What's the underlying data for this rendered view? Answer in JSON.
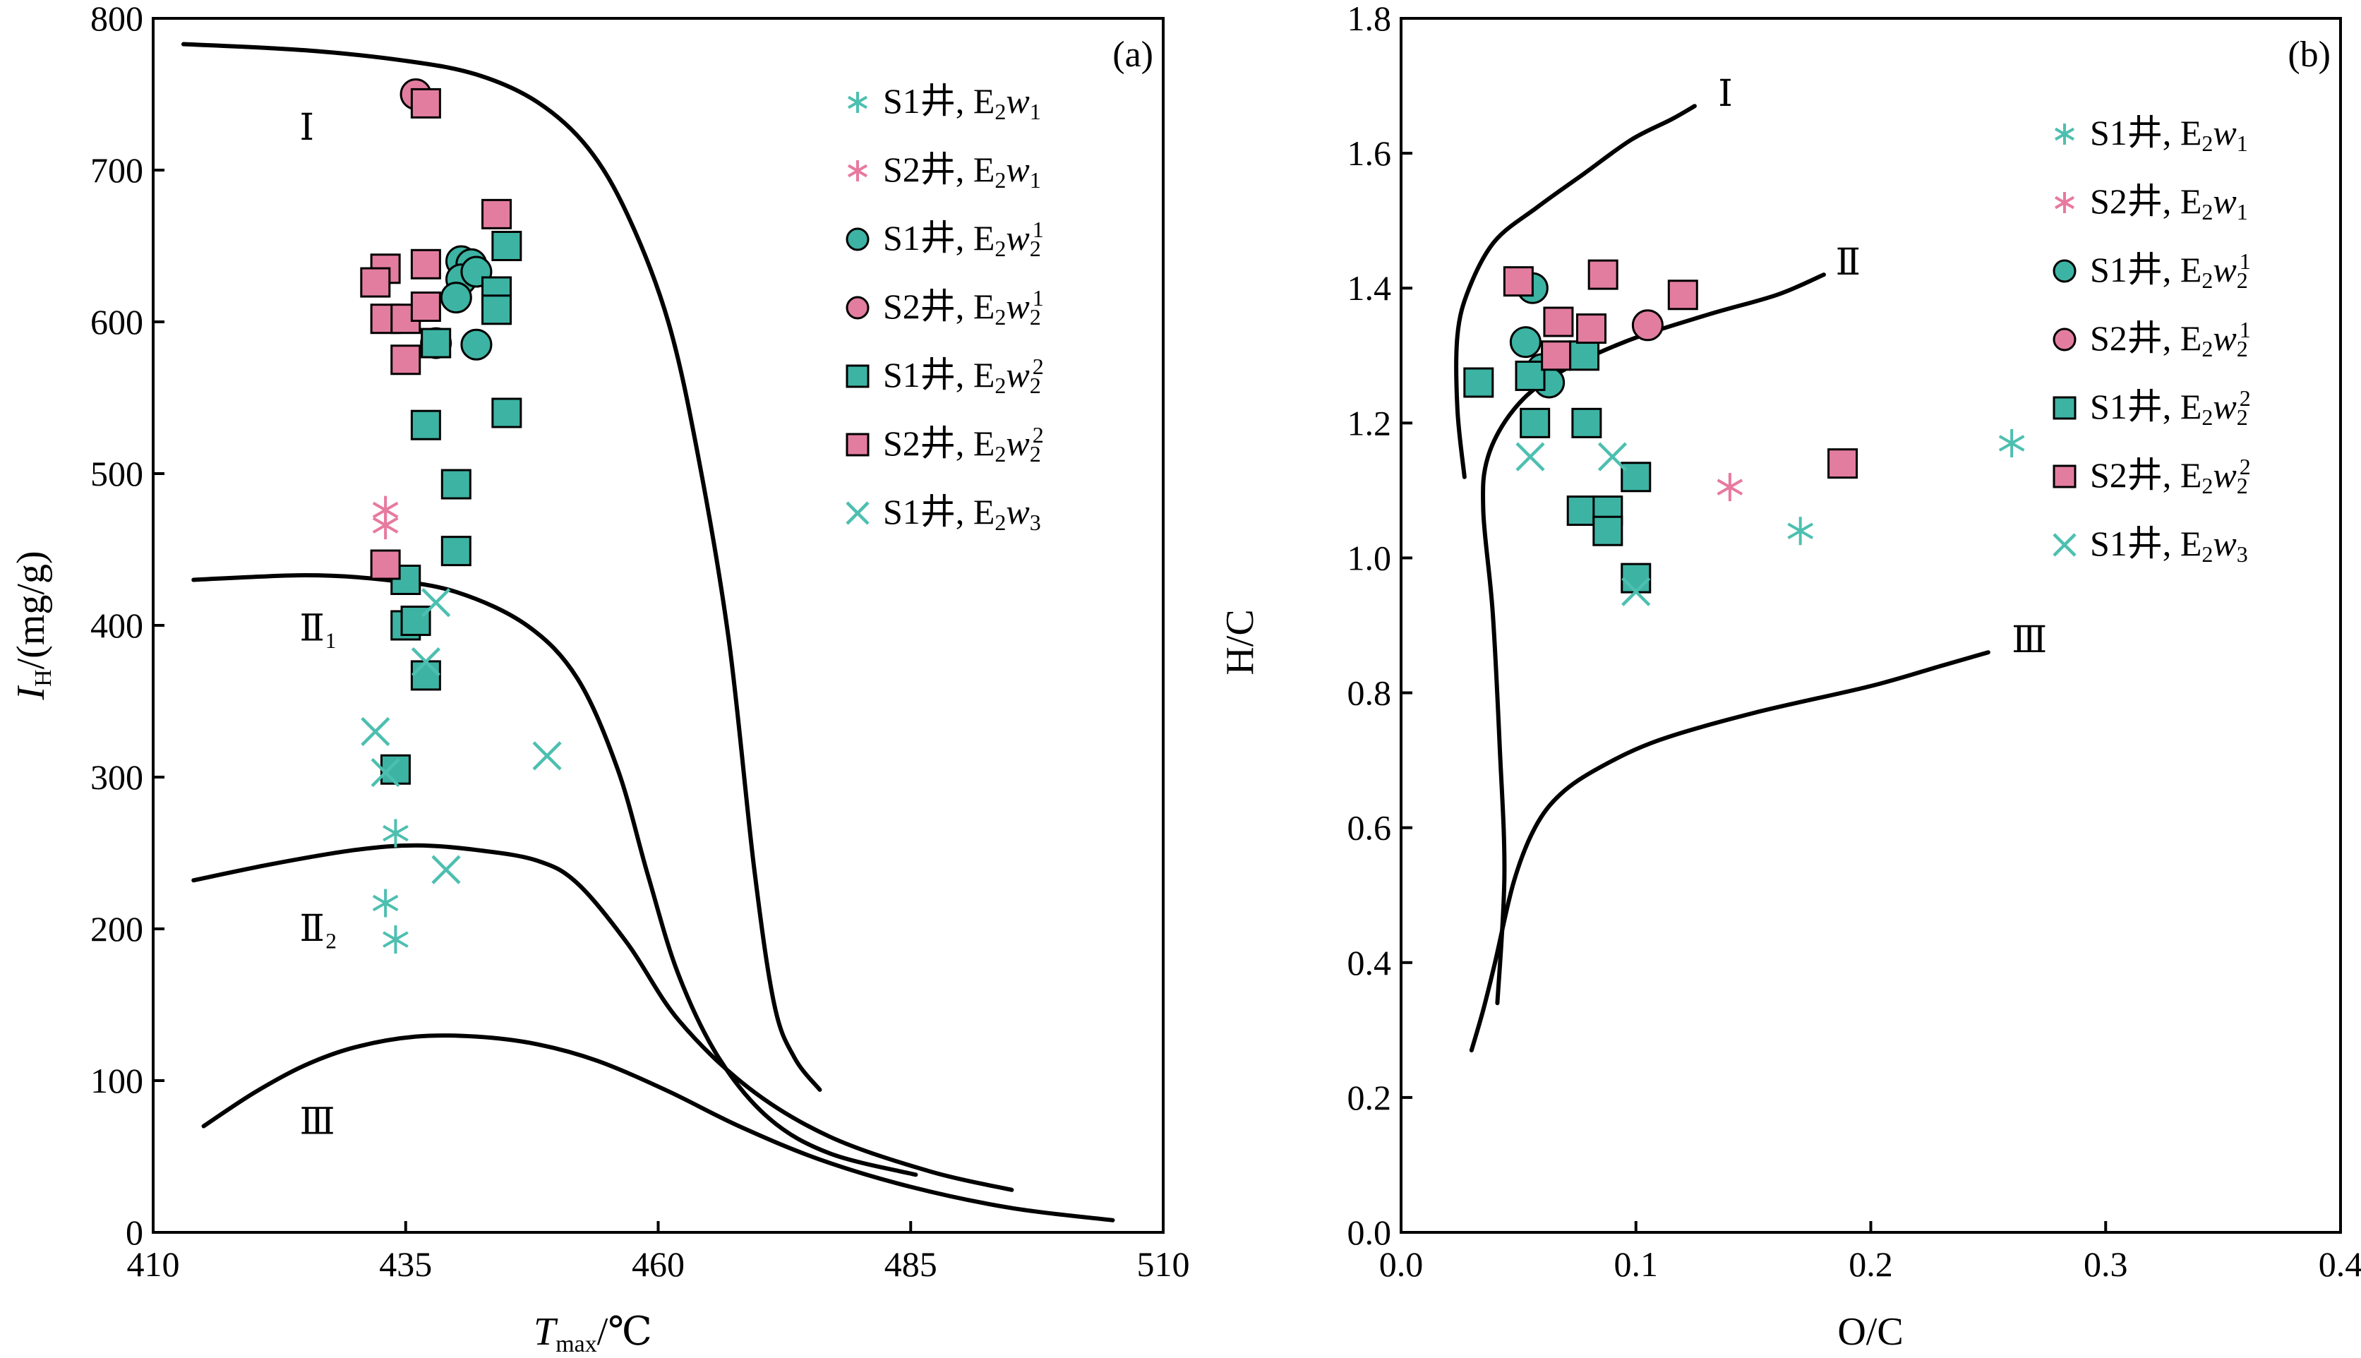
{
  "colors": {
    "teal": "#4dbfb0",
    "teal_fill": "#3db3a3",
    "pink": "#e8799f",
    "pink_fill": "#e37d9f"
  },
  "chart_data": [
    {
      "id": "a",
      "type": "scatter",
      "panel_label": "(a)",
      "xlabel_main": "T",
      "xlabel_sub": "max",
      "xlabel_unit": "/℃",
      "ylabel_main": "I",
      "ylabel_sub": "H",
      "ylabel_unit": "/(mg/g)",
      "xlim": [
        410,
        510
      ],
      "ylim": [
        0,
        800
      ],
      "xticks": [
        410,
        435,
        460,
        485,
        510
      ],
      "yticks": [
        0,
        100,
        200,
        300,
        400,
        500,
        600,
        700,
        800
      ],
      "boundaries": [
        {
          "label": "Ⅰ",
          "label_pos": [
            424.5,
            720
          ],
          "points": [
            [
              413,
              783
            ],
            [
              425,
              779
            ],
            [
              435,
              772
            ],
            [
              442,
              763
            ],
            [
              448,
              745
            ],
            [
              453,
              715
            ],
            [
              457,
              670
            ],
            [
              461,
              600
            ],
            [
              464,
              510
            ],
            [
              467,
              390
            ],
            [
              469.5,
              240
            ],
            [
              471.5,
              150
            ],
            [
              473.5,
              115
            ],
            [
              476,
              94
            ]
          ]
        },
        {
          "label": "Ⅱ₁",
          "label_pos": [
            424.5,
            390
          ],
          "points": [
            [
              414,
              430
            ],
            [
              425,
              433
            ],
            [
              433,
              430
            ],
            [
              440,
              422
            ],
            [
              447,
              400
            ],
            [
              452,
              365
            ],
            [
              456,
              305
            ],
            [
              459,
              235
            ],
            [
              462,
              170
            ],
            [
              466,
              115
            ],
            [
              471,
              75
            ],
            [
              477,
              52
            ],
            [
              485.5,
              38
            ]
          ]
        },
        {
          "label": "Ⅱ₂",
          "label_pos": [
            424.5,
            192
          ],
          "points": [
            [
              414,
              232
            ],
            [
              422,
              243
            ],
            [
              430,
              252
            ],
            [
              436,
              255
            ],
            [
              442,
              252
            ],
            [
              448,
              245
            ],
            [
              452,
              230
            ],
            [
              457,
              190
            ],
            [
              462,
              140
            ],
            [
              469,
              95
            ],
            [
              477,
              63
            ],
            [
              487,
              40
            ],
            [
              495,
              28
            ]
          ]
        },
        {
          "label": "Ⅲ",
          "label_pos": [
            424.5,
            65
          ],
          "points": [
            [
              415,
              70
            ],
            [
              420,
              92
            ],
            [
              425,
              110
            ],
            [
              430,
              122
            ],
            [
              436,
              129
            ],
            [
              442,
              129
            ],
            [
              448,
              124
            ],
            [
              454,
              113
            ],
            [
              461,
              93
            ],
            [
              468,
              70
            ],
            [
              476,
              48
            ],
            [
              485,
              30
            ],
            [
              495,
              16
            ],
            [
              505,
              8
            ]
          ]
        }
      ],
      "series": [
        {
          "name": "S1井, E₂w₁",
          "marker": "asterisk",
          "color": "teal",
          "points": [
            [
              433,
              217
            ],
            [
              434,
              263
            ],
            [
              434,
              193
            ]
          ]
        },
        {
          "name": "S2井, E₂w₁",
          "marker": "asterisk",
          "color": "pink",
          "points": [
            [
              433,
              476
            ],
            [
              433,
              466
            ]
          ]
        },
        {
          "name": "S1井, E₂w₂¹",
          "marker": "circle",
          "color": "teal",
          "points": [
            [
              440.5,
              640
            ],
            [
              441.5,
              638
            ],
            [
              440.5,
              628
            ],
            [
              440,
              616
            ],
            [
              438,
              586
            ],
            [
              442,
              585
            ],
            [
              442,
              633
            ]
          ]
        },
        {
          "name": "S2井, E₂w₂¹",
          "marker": "circle",
          "color": "pink",
          "points": [
            [
              436,
              750
            ]
          ]
        },
        {
          "name": "S1井, E₂w₂²",
          "marker": "square",
          "color": "teal",
          "points": [
            [
              445,
              650
            ],
            [
              444,
              620
            ],
            [
              444,
              608
            ],
            [
              445,
              540
            ],
            [
              438,
              586
            ],
            [
              437,
              532
            ],
            [
              440,
              493
            ],
            [
              440,
              449
            ],
            [
              435,
              430
            ],
            [
              435,
              400
            ],
            [
              436,
              403
            ],
            [
              437,
              367
            ],
            [
              434,
              305
            ]
          ]
        },
        {
          "name": "S2井, E₂w₂²",
          "marker": "square",
          "color": "pink",
          "points": [
            [
              437,
              744
            ],
            [
              444,
              671
            ],
            [
              433,
              635
            ],
            [
              432,
              626
            ],
            [
              433,
              602
            ],
            [
              435,
              602
            ],
            [
              437,
              638
            ],
            [
              437,
              610
            ],
            [
              435,
              575
            ],
            [
              433,
              440
            ]
          ]
        },
        {
          "name": "S1井, E₂w₃",
          "marker": "cross",
          "color": "teal",
          "points": [
            [
              432,
              330
            ],
            [
              433,
              303
            ],
            [
              438,
              415
            ],
            [
              437,
              376
            ],
            [
              449,
              314
            ],
            [
              439,
              239
            ]
          ]
        }
      ]
    },
    {
      "id": "b",
      "type": "scatter",
      "panel_label": "(b)",
      "xlabel": "O/C",
      "ylabel": "H/C",
      "xlim": [
        0.0,
        0.4
      ],
      "ylim": [
        0.0,
        1.8
      ],
      "xticks": [
        "0.0",
        "0.1",
        "0.2",
        "0.3",
        "0.4"
      ],
      "yticks": [
        "0.0",
        "0.2",
        "0.4",
        "0.6",
        "0.8",
        "1.0",
        "1.2",
        "1.4",
        "1.6",
        "1.8"
      ],
      "boundaries": [
        {
          "label": "Ⅰ",
          "label_pos": [
            0.135,
            1.67
          ],
          "points": [
            [
              0.027,
              1.12
            ],
            [
              0.024,
              1.22
            ],
            [
              0.024,
              1.33
            ],
            [
              0.029,
              1.4
            ],
            [
              0.04,
              1.47
            ],
            [
              0.058,
              1.52
            ],
            [
              0.078,
              1.57
            ],
            [
              0.098,
              1.62
            ],
            [
              0.115,
              1.65
            ],
            [
              0.125,
              1.67
            ]
          ]
        },
        {
          "label": "Ⅱ",
          "label_pos": [
            0.185,
            1.42
          ],
          "points": [
            [
              0.041,
              0.34
            ],
            [
              0.044,
              0.53
            ],
            [
              0.042,
              0.72
            ],
            [
              0.039,
              0.92
            ],
            [
              0.035,
              1.07
            ],
            [
              0.037,
              1.15
            ],
            [
              0.048,
              1.22
            ],
            [
              0.065,
              1.27
            ],
            [
              0.095,
              1.32
            ],
            [
              0.13,
              1.36
            ],
            [
              0.16,
              1.39
            ],
            [
              0.18,
              1.42
            ]
          ]
        },
        {
          "label": "Ⅲ",
          "label_pos": [
            0.26,
            0.86
          ],
          "points": [
            [
              0.03,
              0.27
            ],
            [
              0.035,
              0.33
            ],
            [
              0.04,
              0.4
            ],
            [
              0.048,
              0.52
            ],
            [
              0.057,
              0.6
            ],
            [
              0.068,
              0.65
            ],
            [
              0.085,
              0.69
            ],
            [
              0.11,
              0.73
            ],
            [
              0.15,
              0.77
            ],
            [
              0.2,
              0.81
            ],
            [
              0.23,
              0.84
            ],
            [
              0.25,
              0.86
            ]
          ]
        }
      ],
      "series": [
        {
          "name": "S1井, E₂w₁",
          "marker": "asterisk",
          "color": "teal",
          "points": [
            [
              0.17,
              1.04
            ],
            [
              0.26,
              1.17
            ]
          ]
        },
        {
          "name": "S2井, E₂w₁",
          "marker": "asterisk",
          "color": "pink",
          "points": [
            [
              0.14,
              1.105
            ]
          ]
        },
        {
          "name": "S1井, E₂w₂¹",
          "marker": "circle",
          "color": "teal",
          "points": [
            [
              0.056,
              1.4
            ],
            [
              0.053,
              1.32
            ],
            [
              0.06,
              1.28
            ],
            [
              0.063,
              1.26
            ]
          ]
        },
        {
          "name": "S2井, E₂w₂¹",
          "marker": "circle",
          "color": "pink",
          "points": [
            [
              0.105,
              1.345
            ]
          ]
        },
        {
          "name": "S1井, E₂w₂²",
          "marker": "square",
          "color": "teal",
          "points": [
            [
              0.033,
              1.26
            ],
            [
              0.055,
              1.27
            ],
            [
              0.057,
              1.2
            ],
            [
              0.079,
              1.2
            ],
            [
              0.078,
              1.3
            ],
            [
              0.077,
              1.07
            ],
            [
              0.088,
              1.07
            ],
            [
              0.088,
              1.04
            ],
            [
              0.1,
              1.12
            ],
            [
              0.1,
              0.97
            ]
          ]
        },
        {
          "name": "S2井, E₂w₂²",
          "marker": "square",
          "color": "pink",
          "points": [
            [
              0.05,
              1.41
            ],
            [
              0.086,
              1.42
            ],
            [
              0.12,
              1.39
            ],
            [
              0.067,
              1.35
            ],
            [
              0.081,
              1.34
            ],
            [
              0.066,
              1.3
            ],
            [
              0.188,
              1.14
            ]
          ]
        },
        {
          "name": "S1井, E₂w₃",
          "marker": "cross",
          "color": "teal",
          "points": [
            [
              0.055,
              1.15
            ],
            [
              0.09,
              1.15
            ],
            [
              0.1,
              0.95
            ]
          ]
        }
      ]
    }
  ],
  "legend": [
    {
      "well": "S1井, ",
      "E": "E",
      "sub": "2",
      "w": "w",
      "wsub": "1",
      "wsup": "",
      "marker": "asterisk",
      "color": "teal"
    },
    {
      "well": "S2井, ",
      "E": "E",
      "sub": "2",
      "w": "w",
      "wsub": "1",
      "wsup": "",
      "marker": "asterisk",
      "color": "pink"
    },
    {
      "well": "S1井, ",
      "E": "E",
      "sub": "2",
      "w": "w",
      "wsub": "2",
      "wsup": "1",
      "marker": "circle",
      "color": "teal"
    },
    {
      "well": "S2井, ",
      "E": "E",
      "sub": "2",
      "w": "w",
      "wsub": "2",
      "wsup": "1",
      "marker": "circle",
      "color": "pink"
    },
    {
      "well": "S1井, ",
      "E": "E",
      "sub": "2",
      "w": "w",
      "wsub": "2",
      "wsup": "2",
      "marker": "square",
      "color": "teal"
    },
    {
      "well": "S2井, ",
      "E": "E",
      "sub": "2",
      "w": "w",
      "wsub": "2",
      "wsup": "2",
      "marker": "square",
      "color": "pink"
    },
    {
      "well": "S1井, ",
      "E": "E",
      "sub": "2",
      "w": "w",
      "wsub": "3",
      "wsup": "",
      "marker": "cross",
      "color": "teal"
    }
  ]
}
